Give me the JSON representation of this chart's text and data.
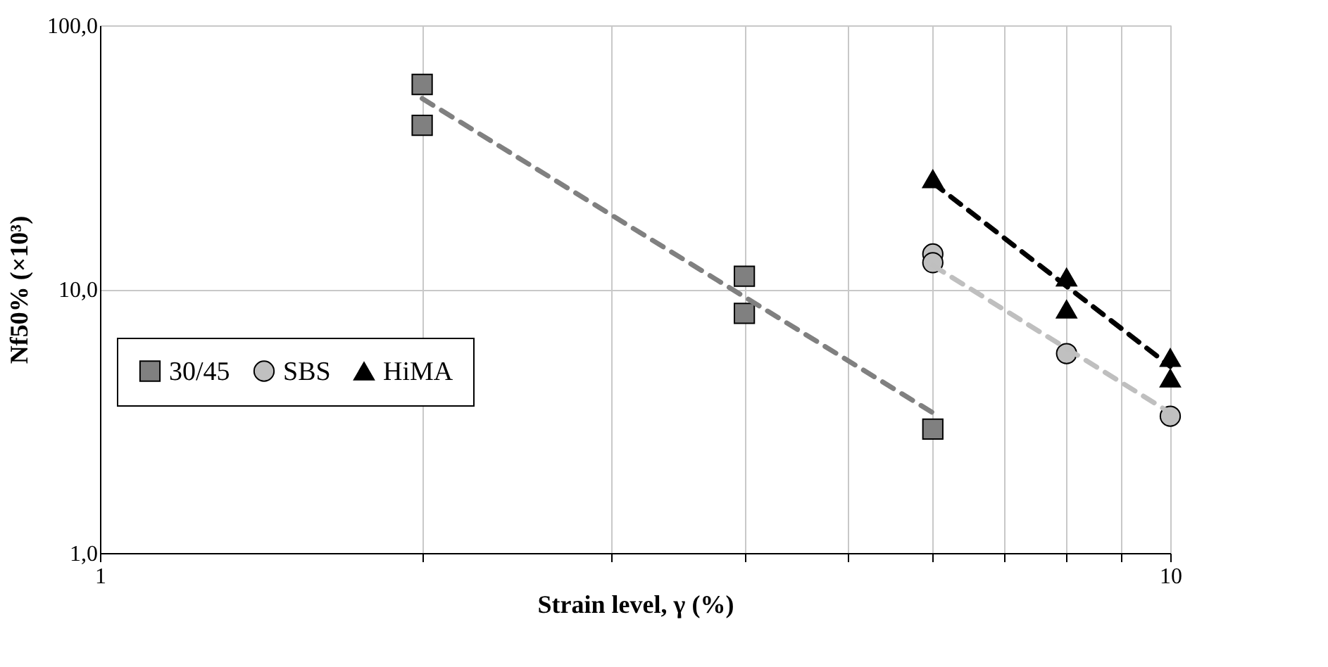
{
  "chart_data": {
    "type": "scatter",
    "xlabel": "Strain level, γ (%)",
    "ylabel": "Nf50% (×10³)",
    "log": "xy",
    "grid": true,
    "legend": "bottom left",
    "xlim": [
      1,
      10
    ],
    "ylim": [
      1,
      100
    ],
    "xticks": [
      1,
      {
        "value": 2,
        "label": null
      },
      {
        "value": 3,
        "label": null
      },
      {
        "value": 4,
        "label": null
      },
      {
        "value": 5,
        "label": null
      },
      {
        "value": 6,
        "label": null
      },
      {
        "value": 7,
        "label": null
      },
      {
        "value": 8,
        "label": null
      },
      {
        "value": 9,
        "label": null
      },
      10
    ],
    "yticks": [
      {
        "value": 1,
        "label": "1,0"
      },
      {
        "value": 10,
        "label": "10,0"
      },
      {
        "value": 100,
        "label": "100,0"
      }
    ],
    "series": [
      {
        "name": "30/45",
        "type": "scatter",
        "marker": "square",
        "color": "#808080",
        "x": [
          2,
          2,
          4,
          4,
          6
        ],
        "values": [
          59.7,
          41.8,
          11.2,
          8.1,
          2.95
        ]
      },
      {
        "name": "SBS",
        "type": "scatter",
        "marker": "circle",
        "color": "#c0c0c0",
        "x": [
          6,
          6,
          8,
          10
        ],
        "values": [
          13.6,
          12.6,
          5.7,
          3.3
        ]
      },
      {
        "name": "HiMA",
        "type": "scatter",
        "marker": "triangle",
        "color": "#000000",
        "x": [
          6,
          8,
          8,
          10,
          10
        ],
        "values": [
          26.2,
          11.1,
          8.4,
          5.5,
          4.6
        ]
      },
      {
        "type": "line",
        "marker": "none",
        "line_style": "dashed",
        "color": "#808080",
        "x": [
          2,
          6
        ],
        "values": [
          52.8,
          3.4
        ]
      },
      {
        "type": "line",
        "marker": "none",
        "line_style": "dashed",
        "color": "#bfbfbf",
        "x": [
          6,
          10
        ],
        "values": [
          12.3,
          3.4
        ]
      },
      {
        "type": "line",
        "marker": "none",
        "line_style": "dashed",
        "color": "#000000",
        "x": [
          6,
          10
        ],
        "values": [
          25.3,
          5.1
        ]
      }
    ]
  }
}
